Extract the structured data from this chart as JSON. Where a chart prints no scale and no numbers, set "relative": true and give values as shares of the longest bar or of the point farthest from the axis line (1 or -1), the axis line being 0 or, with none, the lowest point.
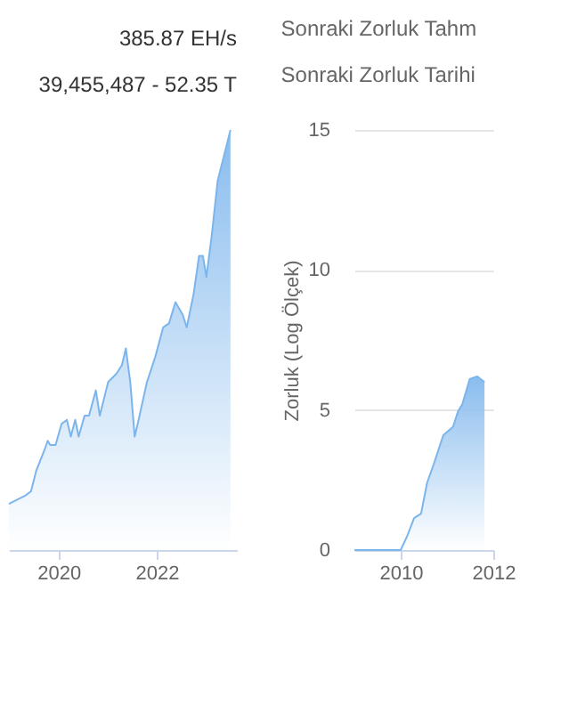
{
  "chart_data": [
    {
      "type": "area",
      "title": "385.87 EH/s",
      "subtitle": "39,455,487 - 52.35 T",
      "relative": true,
      "tick_labels": "x",
      "xlim": [
        2018.99,
        2023.63
      ],
      "xticks": [
        2020,
        2022
      ],
      "series": [
        {
          "color": "#7cb5ec",
          "x": [
            2018.99,
            2019.33,
            2019.44,
            2019.55,
            2019.72,
            2019.78,
            2019.83,
            2019.94,
            2020.06,
            2020.17,
            2020.25,
            2020.34,
            2020.41,
            2020.53,
            2020.62,
            2020.76,
            2020.84,
            2021.01,
            2021.18,
            2021.29,
            2021.37,
            2021.46,
            2021.55,
            2021.63,
            2021.8,
            2021.97,
            2022.13,
            2022.25,
            2022.38,
            2022.53,
            2022.61,
            2022.75,
            2022.86,
            2022.94,
            2023.01,
            2023.12,
            2023.24,
            2023.35,
            2023.5
          ],
          "values": [
            0.11,
            0.13,
            0.14,
            0.19,
            0.24,
            0.26,
            0.25,
            0.25,
            0.3,
            0.31,
            0.27,
            0.31,
            0.27,
            0.32,
            0.32,
            0.38,
            0.32,
            0.4,
            0.42,
            0.44,
            0.48,
            0.4,
            0.27,
            0.31,
            0.4,
            0.46,
            0.53,
            0.54,
            0.59,
            0.56,
            0.53,
            0.61,
            0.7,
            0.7,
            0.65,
            0.75,
            0.88,
            0.93,
            1.0
          ]
        }
      ]
    },
    {
      "type": "area",
      "title": "Sonraki Zorluk Tahm",
      "subtitle": "Sonraki Zorluk Tarihi",
      "ylabel": "Zorluk (Log Ölçek)",
      "grid": "y",
      "xlim": [
        2009.0,
        2012.0
      ],
      "xticks": [
        2010,
        2012
      ],
      "ylim": [
        0,
        15
      ],
      "yticks": [
        0,
        5,
        10,
        15
      ],
      "series": [
        {
          "color": "#7cb5ec",
          "x": [
            2009.0,
            2010.0,
            2010.13,
            2010.29,
            2010.44,
            2010.57,
            2010.71,
            2010.92,
            2011.13,
            2011.24,
            2011.33,
            2011.49,
            2011.65,
            2011.81
          ],
          "values": [
            0,
            0,
            0.46,
            1.14,
            1.3,
            2.4,
            3.05,
            4.1,
            4.4,
            4.96,
            5.2,
            6.1,
            6.2,
            6.0
          ]
        }
      ]
    }
  ]
}
